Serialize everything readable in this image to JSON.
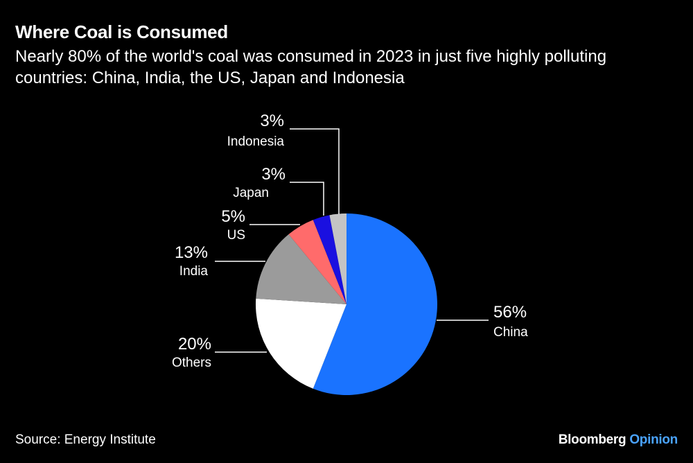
{
  "header": {
    "title": "Where Coal is Consumed",
    "subtitle": "Nearly 80% of the world's coal was consumed in 2023 in just five highly polluting countries: China, India, the US, Japan and Indonesia"
  },
  "footer": {
    "source": "Source: Energy Institute",
    "brand_main": "Bloomberg",
    "brand_accent": "Opinion"
  },
  "chart_data": {
    "type": "pie",
    "title": "Where Coal is Consumed",
    "unit": "%",
    "slices": [
      {
        "label": "China",
        "value": 56,
        "display": "56%",
        "color": "#1a73ff"
      },
      {
        "label": "Others",
        "value": 20,
        "display": "20%",
        "color": "#ffffff"
      },
      {
        "label": "India",
        "value": 13,
        "display": "13%",
        "color": "#9b9b9b"
      },
      {
        "label": "US",
        "value": 5,
        "display": "5%",
        "color": "#ff6b6b"
      },
      {
        "label": "Japan",
        "value": 3,
        "display": "3%",
        "color": "#1a10e0"
      },
      {
        "label": "Indonesia",
        "value": 3,
        "display": "3%",
        "color": "#c4c4c4"
      }
    ]
  }
}
